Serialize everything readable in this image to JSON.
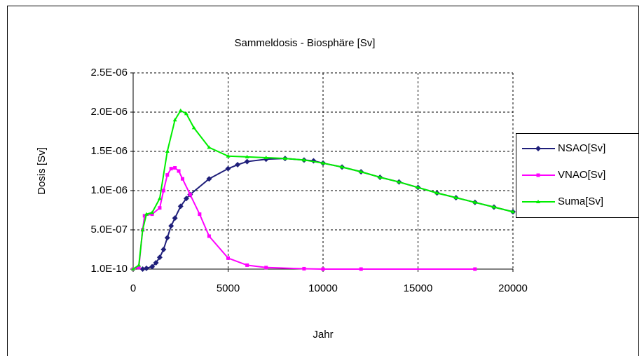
{
  "chart_data": {
    "type": "line",
    "title": "Sammeldosis - Biosphäre [Sv]",
    "xlabel": "Jahr",
    "ylabel": "Dosis [Sv]",
    "xlim": [
      0,
      20000
    ],
    "xticks": [
      0,
      5000,
      10000,
      15000,
      20000
    ],
    "ylim": [
      1e-10,
      2.5e-06
    ],
    "yticks": [
      {
        "value": 1e-10,
        "label": "1.0E-10"
      },
      {
        "value": 5e-07,
        "label": "5.0E-07"
      },
      {
        "value": 1e-06,
        "label": "1.0E-06"
      },
      {
        "value": 1.5e-06,
        "label": "1.5E-06"
      },
      {
        "value": 2e-06,
        "label": "2.0E-06"
      },
      {
        "value": 2.5e-06,
        "label": "2.5E-06"
      }
    ],
    "grid": true,
    "legend": "right",
    "series": [
      {
        "name": "NSAO[Sv]",
        "color": "#1f1f7a",
        "marker": "diamond",
        "x": [
          500,
          700,
          1000,
          1200,
          1400,
          1600,
          1800,
          2000,
          2200,
          2500,
          2800,
          3000,
          4000,
          5000,
          5500,
          6000,
          7000,
          8000,
          9000,
          9500,
          10000,
          11000,
          12000,
          13000,
          14000,
          15000,
          16000,
          17000,
          18000,
          19000,
          20000
        ],
        "values": [
          1e-10,
          1e-08,
          3e-08,
          8e-08,
          1.5e-07,
          2.5e-07,
          4e-07,
          5.5e-07,
          6.5e-07,
          8e-07,
          9e-07,
          9.5e-07,
          1.15e-06,
          1.28e-06,
          1.33e-06,
          1.37e-06,
          1.4e-06,
          1.41e-06,
          1.39e-06,
          1.38e-06,
          1.35e-06,
          1.3e-06,
          1.24e-06,
          1.17e-06,
          1.11e-06,
          1.04e-06,
          9.7e-07,
          9.1e-07,
          8.5e-07,
          7.9e-07,
          7.3e-07
        ]
      },
      {
        "name": "VNAO[Sv]",
        "color": "#ff00ff",
        "marker": "square",
        "x": [
          0,
          300,
          500,
          600,
          1000,
          1400,
          1600,
          1800,
          2000,
          2200,
          2400,
          2600,
          3000,
          3500,
          4000,
          5000,
          6000,
          7000,
          9000,
          10000,
          12000,
          18000
        ],
        "values": [
          1e-10,
          2e-08,
          5e-07,
          6.8e-07,
          7e-07,
          7.8e-07,
          1e-06,
          1.2e-06,
          1.28e-06,
          1.29e-06,
          1.25e-06,
          1.15e-06,
          9.5e-07,
          7e-07,
          4.2e-07,
          1.4e-07,
          5e-08,
          2e-08,
          5e-09,
          1e-10,
          1e-10,
          1e-10
        ]
      },
      {
        "name": "Suma[Sv]",
        "color": "#00ee00",
        "marker": "triangle",
        "x": [
          0,
          300,
          500,
          700,
          1000,
          1400,
          1800,
          2200,
          2500,
          2800,
          3200,
          4000,
          5000,
          6000,
          7000,
          8000,
          9000,
          10000,
          11000,
          12000,
          13000,
          14000,
          15000,
          16000,
          17000,
          18000,
          19000,
          20000
        ],
        "values": [
          1e-10,
          5e-08,
          5e-07,
          7e-07,
          7.2e-07,
          9e-07,
          1.5e-06,
          1.9e-06,
          2.02e-06,
          1.98e-06,
          1.8e-06,
          1.55e-06,
          1.44e-06,
          1.43e-06,
          1.42e-06,
          1.41e-06,
          1.39e-06,
          1.35e-06,
          1.3e-06,
          1.24e-06,
          1.17e-06,
          1.11e-06,
          1.04e-06,
          9.7e-07,
          9.1e-07,
          8.5e-07,
          7.9e-07,
          7.3e-07
        ]
      }
    ]
  }
}
